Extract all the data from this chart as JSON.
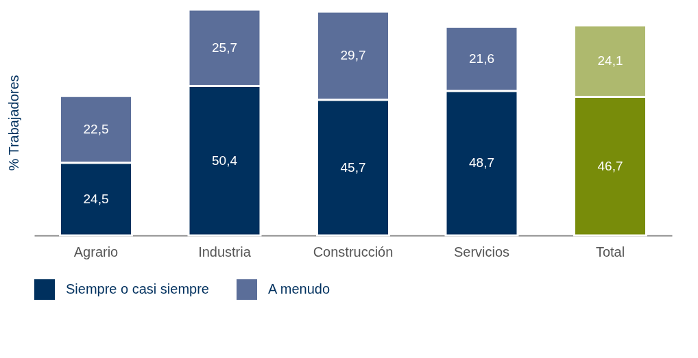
{
  "chart_data": {
    "type": "bar",
    "stacked": true,
    "ylabel": "% Trabajadores",
    "categories": [
      "Agrario",
      "Industria",
      "Construcción",
      "Servicios",
      "Total"
    ],
    "series": [
      {
        "name": "Siempre o casi siempre",
        "color": "#00305e",
        "colors": [
          "#00305e",
          "#00305e",
          "#00305e",
          "#00305e",
          "#788c0a"
        ],
        "values": [
          24.5,
          50.4,
          45.7,
          48.7,
          46.7
        ],
        "value_labels": [
          "24,5",
          "50,4",
          "45,7",
          "48,7",
          "46,7"
        ]
      },
      {
        "name": "A menudo",
        "color": "#5b6e99",
        "colors": [
          "#5b6e99",
          "#5b6e99",
          "#5b6e99",
          "#5b6e99",
          "#aeb96e"
        ],
        "values": [
          22.5,
          25.7,
          29.7,
          21.6,
          24.1
        ],
        "value_labels": [
          "22,5",
          "25,7",
          "29,7",
          "21,6",
          "24,1"
        ]
      }
    ],
    "tick_labels": "x",
    "legend": "bottom"
  }
}
